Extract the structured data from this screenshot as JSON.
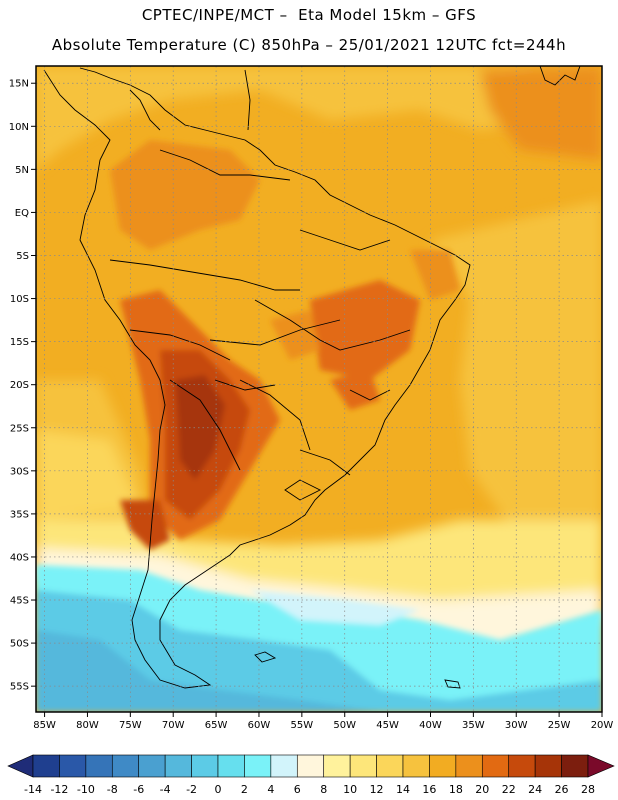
{
  "header": {
    "title_line1": "CPTEC/INPE/MCT –  Eta Model 15km – GFS",
    "title_line2": "Absolute Temperature (C) 850hPa – 25/01/2021 12UTC fct=244h"
  },
  "map": {
    "lat_labels": [
      "15N",
      "10N",
      "5N",
      "EQ",
      "5S",
      "10S",
      "15S",
      "20S",
      "25S",
      "30S",
      "35S",
      "40S",
      "45S",
      "50S",
      "55S"
    ],
    "lon_labels": [
      "85W",
      "80W",
      "75W",
      "70W",
      "65W",
      "60W",
      "55W",
      "50W",
      "45W",
      "40W",
      "35W",
      "30W",
      "25W",
      "20W"
    ],
    "lat_values": [
      15,
      10,
      5,
      0,
      -5,
      -10,
      -15,
      -20,
      -25,
      -30,
      -35,
      -40,
      -45,
      -50,
      -55
    ],
    "lon_values": [
      -85,
      -80,
      -75,
      -70,
      -65,
      -60,
      -55,
      -50,
      -45,
      -40,
      -35,
      -30,
      -25,
      -20
    ],
    "lon_range": [
      -86,
      -20
    ],
    "lat_range": [
      -58,
      17
    ],
    "grid": true
  },
  "colorbar": {
    "labels": [
      "-14",
      "-12",
      "-10",
      "-8",
      "-6",
      "-4",
      "-2",
      "0",
      "2",
      "4",
      "6",
      "8",
      "10",
      "12",
      "14",
      "16",
      "18",
      "20",
      "22",
      "24",
      "26",
      "28"
    ],
    "colors": [
      "#1f3f8f",
      "#2a58a8",
      "#3574b8",
      "#3f8ac6",
      "#4aa0d0",
      "#55b8dc",
      "#5ccbe6",
      "#66dfee",
      "#7af2f8",
      "#d2f4fb",
      "#fff6dc",
      "#fff29c",
      "#fde67a",
      "#fbd65a",
      "#f6c23e",
      "#f2ac22",
      "#ec901c",
      "#e26a12",
      "#c64a0c",
      "#a63408",
      "#7c1e0e"
    ],
    "under_color": "#1f2c78",
    "over_color": "#7a0a2a"
  }
}
